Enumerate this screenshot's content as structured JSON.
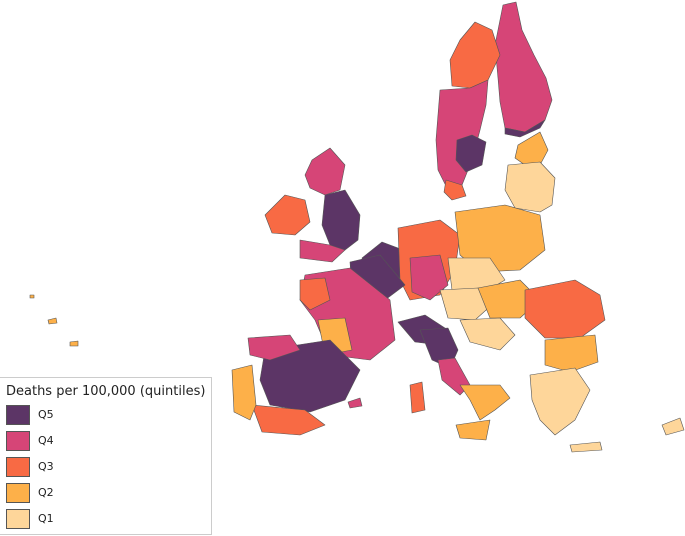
{
  "legend": {
    "title": "Deaths per 100,000 (quintiles)",
    "items": [
      {
        "label": "Q5",
        "color": "#5c3566"
      },
      {
        "label": "Q4",
        "color": "#d64577"
      },
      {
        "label": "Q3",
        "color": "#f86a44"
      },
      {
        "label": "Q2",
        "color": "#fdb049"
      },
      {
        "label": "Q1",
        "color": "#fed69a"
      }
    ]
  },
  "colors": {
    "Q5": "#5c3566",
    "Q4": "#d64577",
    "Q3": "#f86a44",
    "Q2": "#fdb049",
    "Q1": "#fed69a",
    "border": "#555555"
  }
}
